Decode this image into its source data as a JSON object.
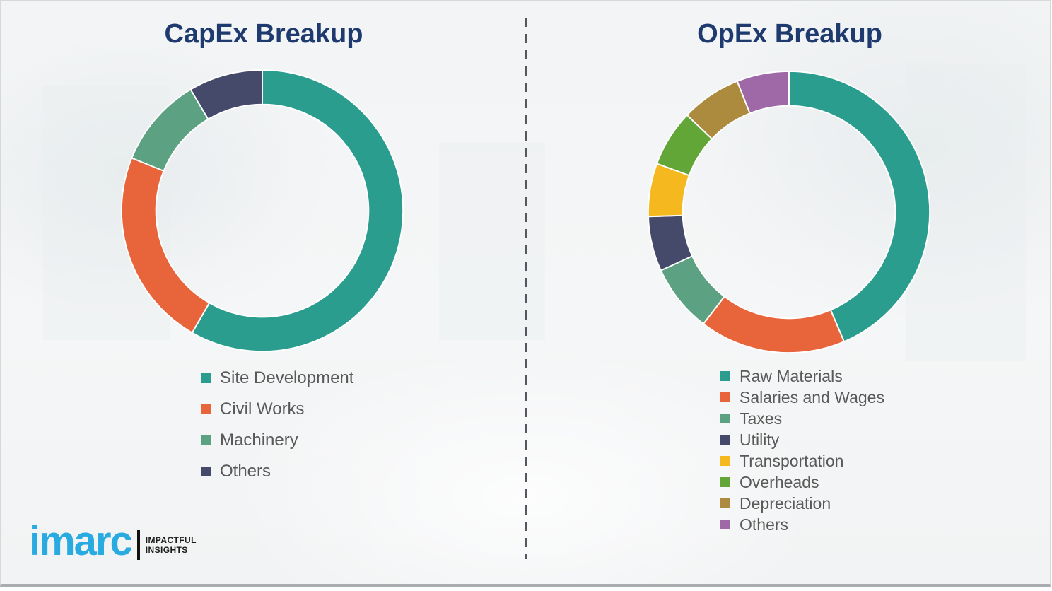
{
  "page": {
    "background_color": "#f3f5f6",
    "divider_style": "vertical dashed line",
    "divider_color": "#54585e"
  },
  "chart_data": [
    {
      "type": "pie",
      "variant": "donut",
      "title": "CapEx Breakup",
      "labels": [
        "Site Development",
        "Civil Works",
        "Machinery",
        "Others"
      ],
      "values": [
        58.3,
        22.8,
        10.4,
        8.5
      ],
      "values_estimated_from_arc_angles": true,
      "colors": [
        "#2a9d8f",
        "#e8653c",
        "#5ca181",
        "#454a6b"
      ],
      "start_angle_deg": 0,
      "direction": "clockwise",
      "legend_position": "below-left",
      "data_labels_shown": false
    },
    {
      "type": "pie",
      "variant": "donut",
      "title": "OpEx Breakup",
      "labels": [
        "Raw Materials",
        "Salaries and Wages",
        "Taxes",
        "Utility",
        "Transportation",
        "Overheads",
        "Depreciation",
        "Others"
      ],
      "values": [
        43.6,
        16.8,
        7.8,
        6.3,
        6.1,
        6.5,
        6.9,
        6.0
      ],
      "values_estimated_from_arc_angles": true,
      "colors": [
        "#2a9d8f",
        "#e8653c",
        "#5ca181",
        "#454a6b",
        "#f5b81f",
        "#61a637",
        "#ac8b3e",
        "#9f69a8"
      ],
      "start_angle_deg": 0,
      "direction": "clockwise",
      "legend_position": "below-left",
      "data_labels_shown": false
    }
  ],
  "titles": {
    "title_color": "#1e3a6e",
    "legend_text_color": "#595959"
  },
  "logo": {
    "wordmark": "imarc",
    "wordmark_color": "#29abe2",
    "tagline_line1": "IMPACTFUL",
    "tagline_line2": "INSIGHTS"
  }
}
